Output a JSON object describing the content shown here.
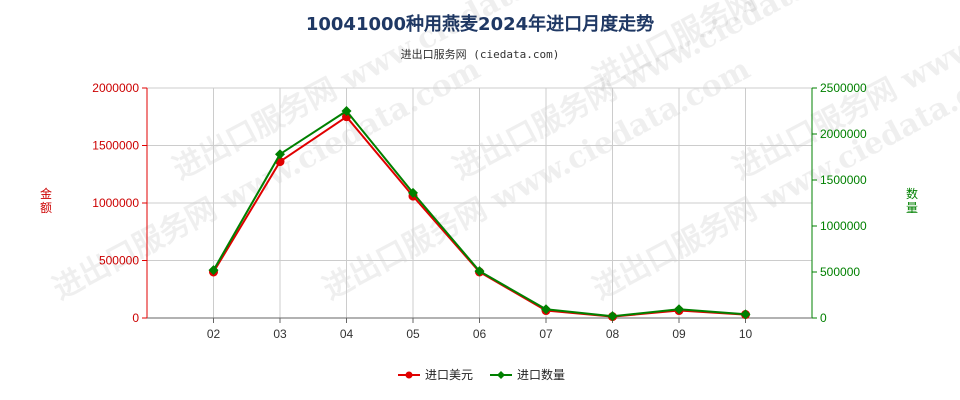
{
  "header": {
    "title": "10041000种用燕麦2024年进口月度走势",
    "subtitle": "进出口服务网 (ciedata.com)"
  },
  "watermark": "进出口服务网 www.ciedata.com",
  "colors": {
    "series1": "#e00000",
    "series2": "#008000",
    "grid": "#cccccc",
    "axis": "#666666"
  },
  "chart_data": {
    "type": "line",
    "categories": [
      "02",
      "03",
      "04",
      "05",
      "06",
      "07",
      "08",
      "09",
      "10"
    ],
    "series": [
      {
        "name": "进口美元",
        "axis": "left",
        "color": "#e00000",
        "marker": "circle",
        "values": [
          400000,
          1360000,
          1750000,
          1060000,
          400000,
          65000,
          12000,
          65000,
          30000
        ]
      },
      {
        "name": "进口数量",
        "axis": "right",
        "color": "#008000",
        "marker": "diamond",
        "values": [
          520000,
          1780000,
          2250000,
          1360000,
          510000,
          95000,
          20000,
          95000,
          40000
        ]
      }
    ],
    "ylabel_left": "金额",
    "ylabel_right": "数量",
    "ylim_left": [
      0,
      2000000
    ],
    "ylim_right": [
      0,
      2500000
    ],
    "yticks_left": [
      "0",
      "500000",
      "1000000",
      "1500000",
      "2000000"
    ],
    "yticks_right": [
      "0",
      "500000",
      "1000000",
      "1500000",
      "2000000",
      "2500000"
    ],
    "grid": true,
    "legend_position": "bottom-center"
  }
}
